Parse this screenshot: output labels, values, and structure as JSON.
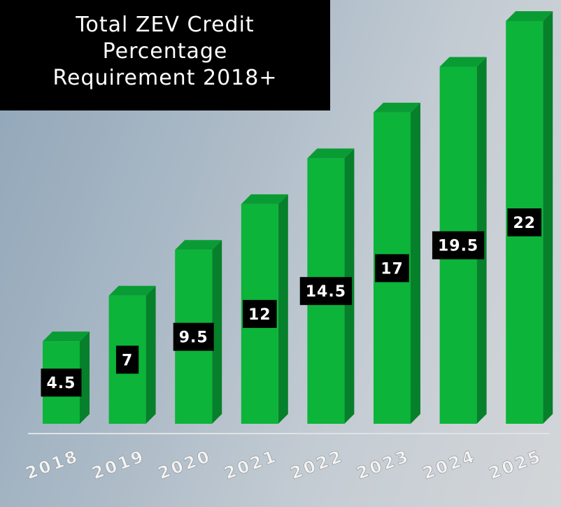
{
  "chart_data": {
    "type": "bar3d",
    "title": "Total ZEV Credit Percentage Requirement 2018+",
    "categories": [
      "2018",
      "2019",
      "2020",
      "2021",
      "2022",
      "2023",
      "2024",
      "2025"
    ],
    "values": [
      4.5,
      7,
      9.5,
      12,
      14.5,
      17,
      19.5,
      22
    ],
    "color": "#0cb43a"
  }
}
